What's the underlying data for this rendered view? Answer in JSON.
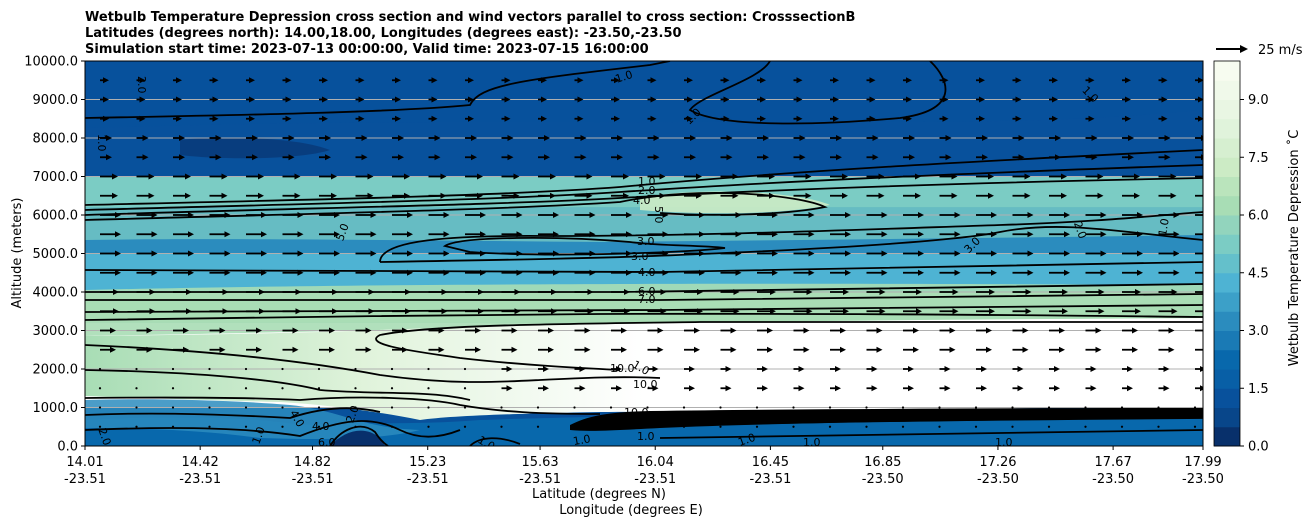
{
  "chart_data": {
    "type": "contour",
    "title_lines": [
      "Wetbulb Temperature Depression cross section and wind vectors parallel to cross section: CrosssectionB",
      "Latitudes (degrees north): 14.00,18.00, Longitudes (degrees east): -23.50,-23.50",
      "Simulation start time: 2023-07-13 00:00:00, Valid time: 2023-07-15 16:00:00"
    ],
    "ylabel": "Altitude (meters)",
    "xlabel_lines": [
      "Latitude (degrees N)",
      "Longitude (degrees E)"
    ],
    "ylim": [
      0,
      10000
    ],
    "yticks": [
      "0.0",
      "1000.0",
      "2000.0",
      "3000.0",
      "4000.0",
      "5000.0",
      "6000.0",
      "7000.0",
      "8000.0",
      "9000.0",
      "10000.0"
    ],
    "xlim": [
      14.01,
      17.99
    ],
    "xticks": [
      {
        "lat": "14.01",
        "lon": "-23.51"
      },
      {
        "lat": "14.42",
        "lon": "-23.51"
      },
      {
        "lat": "14.82",
        "lon": "-23.51"
      },
      {
        "lat": "15.23",
        "lon": "-23.51"
      },
      {
        "lat": "15.63",
        "lon": "-23.51"
      },
      {
        "lat": "16.04",
        "lon": "-23.51"
      },
      {
        "lat": "16.45",
        "lon": "-23.51"
      },
      {
        "lat": "16.85",
        "lon": "-23.50"
      },
      {
        "lat": "17.26",
        "lon": "-23.50"
      },
      {
        "lat": "17.67",
        "lon": "-23.50"
      },
      {
        "lat": "17.99",
        "lon": "-23.50"
      }
    ],
    "colorbar": {
      "label": "Wetbulb Temperature Depression $^\\circ$C",
      "label_display": "Wetbulb Temperature Depression ˚C",
      "ticks": [
        "0.0",
        "1.5",
        "3.0",
        "4.5",
        "6.0",
        "7.5",
        "9.0"
      ],
      "range": [
        0,
        10
      ],
      "colors": [
        "#08306b",
        "#08519c",
        "#0868ac",
        "#2b8cbe",
        "#4eb3d3",
        "#7bccc4",
        "#a8ddb5",
        "#ccebc5",
        "#e0f3db",
        "#f7fcf0"
      ]
    },
    "wind_key": {
      "label": "25 m/s",
      "speed": 25
    },
    "contour_labels": [
      "1.0",
      "2.0",
      "3.0",
      "4.0",
      "5.0",
      "6.0",
      "7.0",
      "10.0"
    ],
    "grid": true,
    "bands": [
      {
        "alt_bottom": 9000,
        "alt_top": 10000,
        "value": 1.0
      },
      {
        "alt_bottom": 7000,
        "alt_top": 9000,
        "value": 1.5
      },
      {
        "alt_bottom": 6200,
        "alt_top": 7000,
        "value": 5.0
      },
      {
        "alt_bottom": 5000,
        "alt_top": 6200,
        "value": 3.0
      },
      {
        "alt_bottom": 4000,
        "alt_top": 5000,
        "value": 4.0
      },
      {
        "alt_bottom": 3200,
        "alt_top": 4000,
        "value": 6.0
      },
      {
        "alt_bottom": 1000,
        "alt_top": 3200,
        "value": 10.5
      },
      {
        "alt_bottom": 0,
        "alt_top": 1000,
        "value": 1.0
      }
    ]
  }
}
